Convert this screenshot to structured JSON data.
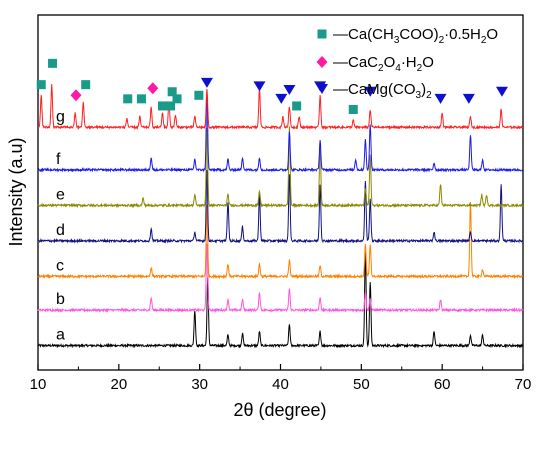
{
  "chart_data": {
    "type": "line",
    "xlabel": "2θ (degree)",
    "ylabel": "Intensity (a.u)",
    "xlim": [
      10,
      70
    ],
    "xticks": [
      10,
      20,
      30,
      40,
      50,
      60,
      70
    ],
    "xtick_labels": [
      "10",
      "20",
      "30",
      "40",
      "50",
      "60",
      "70"
    ],
    "grid": false,
    "legend_position": "top-right",
    "legend": [
      {
        "key": "ca_acetate",
        "label_parts": [
          "—Ca(CH",
          "3",
          "COO)",
          "2",
          "·0.5H",
          "2",
          "O"
        ],
        "marker": "square",
        "color": "#1a9a8a"
      },
      {
        "key": "ca_oxalate",
        "label_parts": [
          "—CaC",
          "2",
          "O",
          "4",
          "·H",
          "2",
          "O"
        ],
        "marker": "diamond",
        "color": "#ff1aa5"
      },
      {
        "key": "camg_carbonate",
        "label_parts": [
          "—CaMg(CO",
          "3",
          ")",
          "2"
        ],
        "marker": "triangle-down",
        "color": "#1010cc"
      }
    ],
    "series": [
      {
        "name": "a",
        "color": "#000000",
        "baseline": 0.35,
        "peaks": [
          [
            29.4,
            1.0
          ],
          [
            31.0,
            1.9
          ],
          [
            33.5,
            0.3
          ],
          [
            35.3,
            0.35
          ],
          [
            37.4,
            0.4
          ],
          [
            41.1,
            0.6
          ],
          [
            44.9,
            0.4
          ],
          [
            50.5,
            2.7
          ],
          [
            51.1,
            1.8
          ],
          [
            59.0,
            0.4
          ],
          [
            63.5,
            0.3
          ],
          [
            65.0,
            0.3
          ]
        ]
      },
      {
        "name": "b",
        "color": "#ff55dd",
        "baseline": 1.35,
        "peaks": [
          [
            24.0,
            0.35
          ],
          [
            30.9,
            1.9
          ],
          [
            33.5,
            0.3
          ],
          [
            35.3,
            0.3
          ],
          [
            37.4,
            0.5
          ],
          [
            41.1,
            0.6
          ],
          [
            44.9,
            0.35
          ],
          [
            50.5,
            0.5
          ],
          [
            51.1,
            0.35
          ],
          [
            59.8,
            0.3
          ]
        ]
      },
      {
        "name": "c",
        "color": "#ff8000",
        "baseline": 2.3,
        "peaks": [
          [
            24.0,
            0.25
          ],
          [
            30.9,
            2.0
          ],
          [
            33.5,
            0.35
          ],
          [
            37.4,
            0.35
          ],
          [
            41.1,
            0.45
          ],
          [
            44.9,
            0.3
          ],
          [
            50.5,
            0.9
          ],
          [
            51.1,
            0.9
          ],
          [
            63.5,
            2.1
          ],
          [
            65.0,
            0.2
          ]
        ]
      },
      {
        "name": "d",
        "color": "#101080",
        "baseline": 3.3,
        "peaks": [
          [
            24.0,
            0.35
          ],
          [
            29.4,
            0.25
          ],
          [
            30.9,
            2.0
          ],
          [
            33.5,
            1.1
          ],
          [
            35.3,
            0.4
          ],
          [
            37.4,
            1.3
          ],
          [
            41.1,
            1.9
          ],
          [
            44.9,
            1.6
          ],
          [
            50.5,
            1.7
          ],
          [
            51.1,
            1.2
          ],
          [
            59.0,
            0.25
          ],
          [
            63.5,
            0.25
          ],
          [
            67.3,
            1.6
          ]
        ]
      },
      {
        "name": "e",
        "color": "#8a8a00",
        "baseline": 4.3,
        "peaks": [
          [
            23.0,
            0.2
          ],
          [
            29.4,
            0.3
          ],
          [
            30.9,
            2.2
          ],
          [
            33.5,
            0.3
          ],
          [
            37.4,
            0.4
          ],
          [
            41.1,
            2.2
          ],
          [
            44.9,
            1.7
          ],
          [
            50.5,
            0.5
          ],
          [
            51.1,
            1.4
          ],
          [
            59.8,
            0.6
          ],
          [
            64.9,
            0.3
          ],
          [
            65.5,
            0.3
          ]
        ]
      },
      {
        "name": "f",
        "color": "#1a1aee",
        "baseline": 5.3,
        "peaks": [
          [
            24.0,
            0.35
          ],
          [
            29.4,
            0.3
          ],
          [
            30.9,
            2.2
          ],
          [
            33.5,
            0.3
          ],
          [
            35.3,
            0.35
          ],
          [
            37.4,
            0.35
          ],
          [
            41.1,
            1.1
          ],
          [
            44.9,
            0.85
          ],
          [
            49.3,
            0.3
          ],
          [
            50.5,
            0.85
          ],
          [
            51.1,
            1.3
          ],
          [
            59.0,
            0.2
          ],
          [
            63.5,
            1.0
          ],
          [
            65.0,
            0.3
          ]
        ]
      },
      {
        "name": "g",
        "color": "#ff2020",
        "baseline": 6.5,
        "peaks": [
          [
            10.4,
            0.9
          ],
          [
            11.7,
            1.2
          ],
          [
            14.6,
            0.4
          ],
          [
            15.6,
            0.7
          ],
          [
            21.0,
            0.25
          ],
          [
            22.6,
            0.3
          ],
          [
            24.0,
            0.55
          ],
          [
            25.4,
            0.4
          ],
          [
            26.2,
            0.7
          ],
          [
            27.0,
            0.35
          ],
          [
            29.4,
            0.3
          ],
          [
            30.9,
            1.1
          ],
          [
            37.4,
            1.1
          ],
          [
            40.3,
            0.3
          ],
          [
            41.1,
            0.6
          ],
          [
            42.3,
            0.3
          ],
          [
            44.9,
            0.9
          ],
          [
            49.0,
            0.2
          ],
          [
            51.1,
            0.5
          ],
          [
            60.0,
            0.4
          ],
          [
            63.5,
            0.3
          ],
          [
            67.3,
            0.5
          ]
        ]
      }
    ],
    "series_label_color": "#222222",
    "phase_markers": {
      "ca_acetate": {
        "x": [
          10.4,
          11.8,
          15.9,
          21.1,
          22.8,
          25.4,
          26.4,
          26.6,
          27.2,
          29.9,
          42.0,
          49.0
        ],
        "level": [
          7.7,
          8.3,
          7.7,
          7.3,
          7.3,
          7.1,
          7.1,
          7.5,
          7.3,
          7.4,
          7.1,
          7.0
        ]
      },
      "ca_oxalate": {
        "x": [
          14.7,
          24.2
        ],
        "level": [
          7.4,
          7.6
        ]
      },
      "camg_carbonate": {
        "x": [
          30.9,
          37.4,
          40.1,
          41.1,
          44.9,
          51.1,
          59.8,
          63.3,
          67.4
        ],
        "level": [
          7.75,
          7.65,
          7.3,
          7.55,
          7.65,
          7.5,
          7.3,
          7.3,
          7.5
        ]
      }
    }
  }
}
